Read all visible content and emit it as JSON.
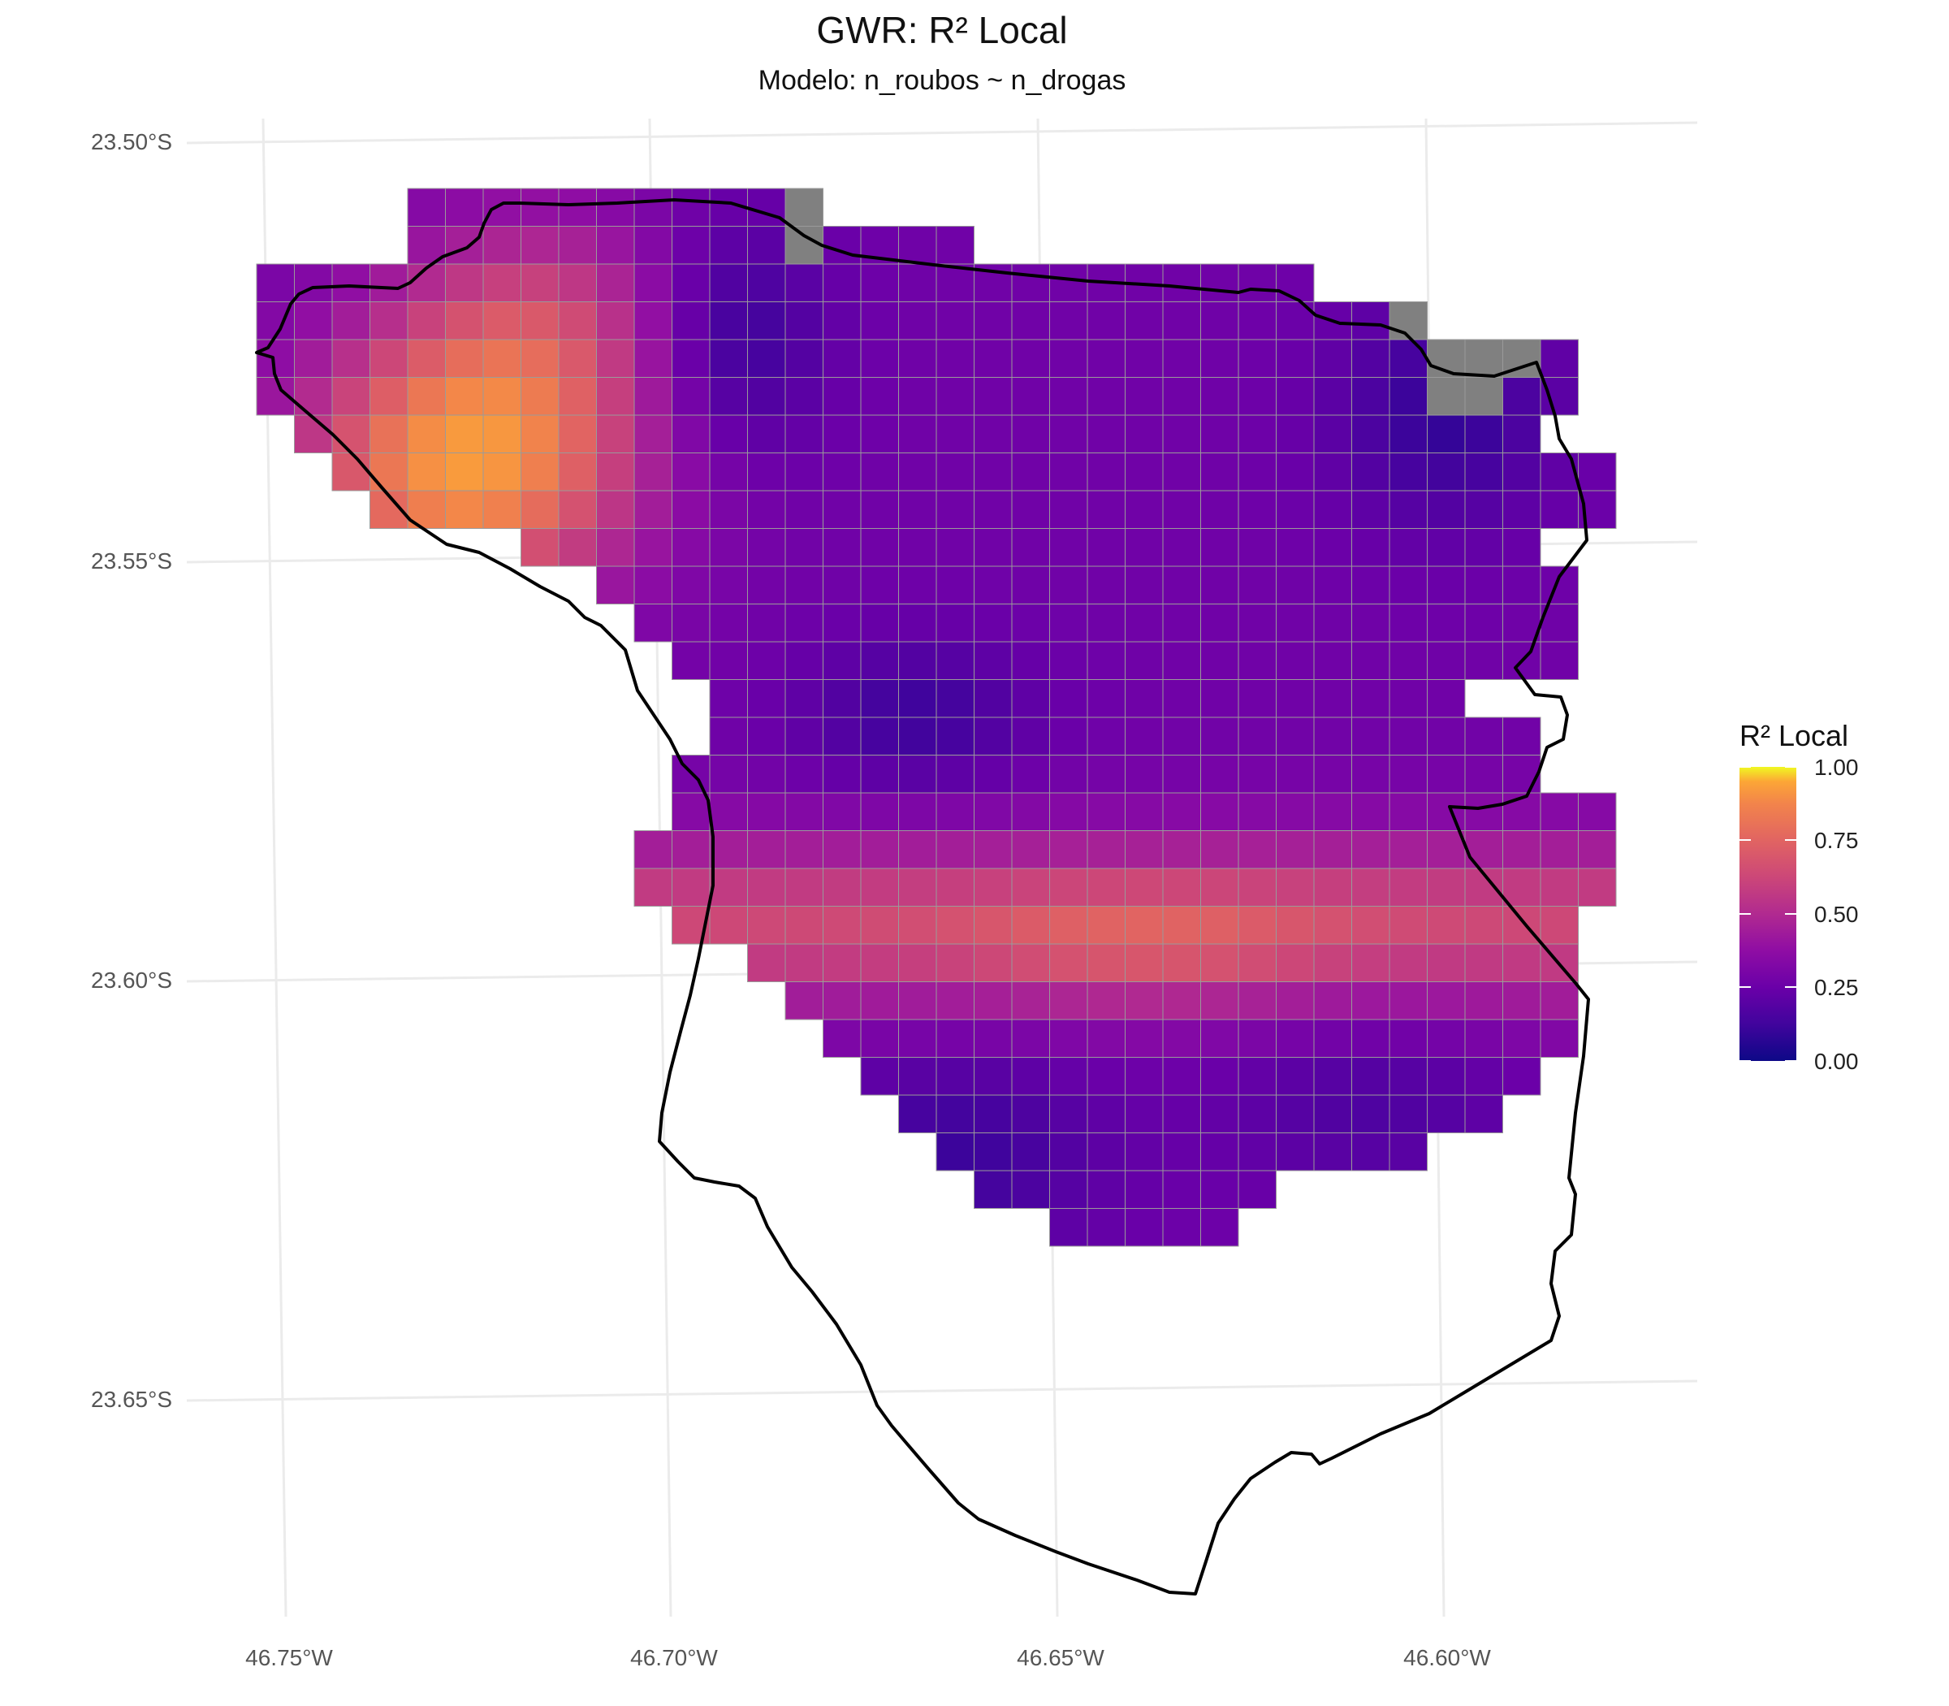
{
  "title": "GWR: R² Local",
  "subtitle": "Modelo: n_roubos ~ n_drogas",
  "map": {
    "lon_ticks": [
      "46.75°W",
      "46.70°W",
      "46.65°W",
      "46.60°W"
    ],
    "lat_ticks": [
      "23.50°S",
      "23.55°S",
      "23.60°S",
      "23.65°S"
    ],
    "missing_color": "#808080",
    "grid_line_color": "#9a9a9a",
    "boundary_color": "#000000"
  },
  "legend": {
    "title": "R² Local",
    "ticks": [
      "1.00",
      "0.75",
      "0.50",
      "0.25",
      "0.00"
    ],
    "palette": "plasma",
    "range": [
      0,
      1
    ]
  }
}
